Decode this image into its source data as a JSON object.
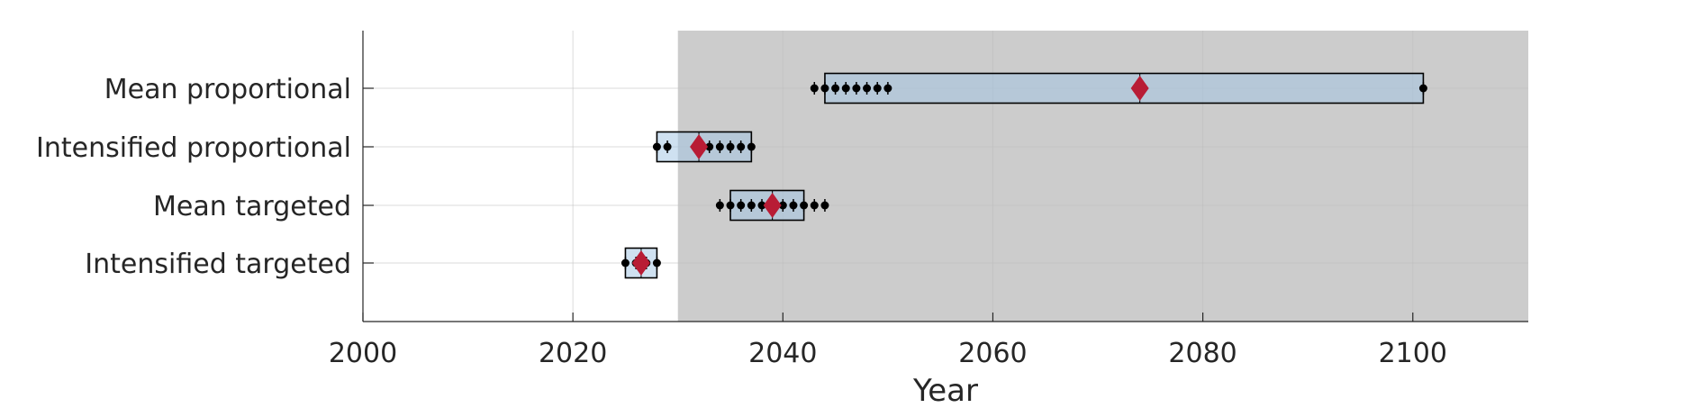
{
  "chart_data": {
    "type": "box",
    "xlabel": "Year",
    "xlim": [
      2000,
      2111
    ],
    "xticks": [
      2000,
      2020,
      2040,
      2060,
      2080,
      2100
    ],
    "grid": true,
    "shaded_region": {
      "x_start": 2030,
      "x_end": 2111,
      "color": "#cccccc"
    },
    "colors": {
      "box_fill": "#9fc4e4",
      "median_marker": "#b81c35",
      "point": "#000000",
      "grid": "#d9d9d9"
    },
    "categories": [
      "Mean proportional",
      "Intensified proportional",
      "Mean targeted",
      "Intensified targeted"
    ],
    "boxes": [
      {
        "category": "Mean proportional",
        "q1": 2044,
        "q3": 2101,
        "median": 2074,
        "points": [
          2043,
          2044,
          2045,
          2046,
          2047,
          2048,
          2049,
          2050,
          2101
        ]
      },
      {
        "category": "Intensified proportional",
        "q1": 2028,
        "q3": 2037,
        "median": 2032,
        "points": [
          2028,
          2029,
          2032,
          2033,
          2034,
          2035,
          2036,
          2037
        ]
      },
      {
        "category": "Mean targeted",
        "q1": 2035,
        "q3": 2042,
        "median": 2039,
        "points": [
          2034,
          2035,
          2036,
          2037,
          2038,
          2039,
          2040,
          2041,
          2042,
          2043,
          2044
        ]
      },
      {
        "category": "Intensified targeted",
        "q1": 2025,
        "q3": 2028,
        "median": 2026.5,
        "points": [
          2025,
          2026,
          2027,
          2028
        ]
      }
    ]
  }
}
